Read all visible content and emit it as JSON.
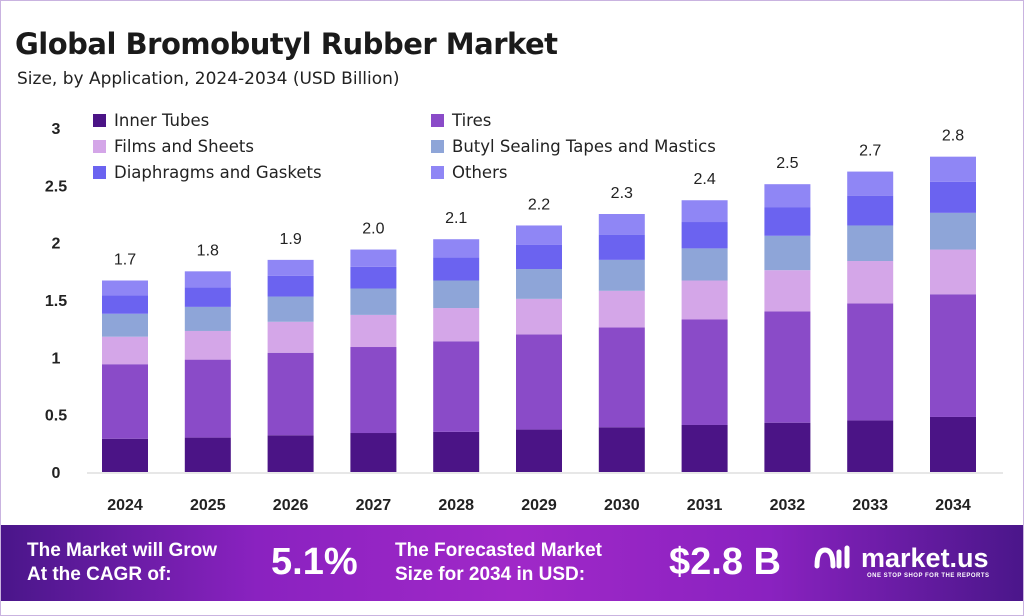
{
  "chart_data": {
    "type": "bar",
    "stacked": true,
    "title": "Global Bromobutyl Rubber Market",
    "subtitle": "Size, by Application, 2024-2034 (USD Billion)",
    "categories": [
      "2024",
      "2025",
      "2026",
      "2027",
      "2028",
      "2029",
      "2030",
      "2031",
      "2032",
      "2033",
      "2034"
    ],
    "totals_labels": [
      "1.7",
      "1.8",
      "1.9",
      "2.0",
      "2.1",
      "2.2",
      "2.3",
      "2.4",
      "2.5",
      "2.7",
      "2.8"
    ],
    "series": [
      {
        "name": "Inner Tubes",
        "color": "#4b1486",
        "values": [
          0.29,
          0.3,
          0.32,
          0.34,
          0.35,
          0.37,
          0.39,
          0.41,
          0.43,
          0.45,
          0.48
        ]
      },
      {
        "name": "Tires",
        "color": "#8a4bc8",
        "values": [
          0.65,
          0.68,
          0.72,
          0.75,
          0.79,
          0.83,
          0.87,
          0.92,
          0.97,
          1.02,
          1.07
        ]
      },
      {
        "name": "Films and Sheets",
        "color": "#d4a6e8",
        "values": [
          0.24,
          0.25,
          0.27,
          0.28,
          0.29,
          0.31,
          0.32,
          0.34,
          0.36,
          0.37,
          0.39
        ]
      },
      {
        "name": "Butyl Sealing Tapes and Mastics",
        "color": "#8ea5d8",
        "values": [
          0.2,
          0.21,
          0.22,
          0.23,
          0.24,
          0.26,
          0.27,
          0.28,
          0.3,
          0.31,
          0.32
        ]
      },
      {
        "name": "Diaphragms and Gaskets",
        "color": "#6b63f0",
        "values": [
          0.16,
          0.17,
          0.18,
          0.19,
          0.2,
          0.21,
          0.22,
          0.23,
          0.25,
          0.26,
          0.27
        ]
      },
      {
        "name": "Others",
        "color": "#8f86f5",
        "values": [
          0.13,
          0.14,
          0.14,
          0.15,
          0.16,
          0.17,
          0.18,
          0.19,
          0.2,
          0.21,
          0.22
        ]
      }
    ],
    "ylim": [
      0,
      3
    ],
    "yticks": [
      "0",
      "0.5",
      "1",
      "1.5",
      "2",
      "2.5",
      "3"
    ],
    "grid": false,
    "legend": "top-left"
  },
  "banner": {
    "cagr_label_1": "The Market will Grow",
    "cagr_label_2": "At the CAGR of:",
    "cagr_value": "5.1%",
    "forecast_label_1": "The Forecasted Market",
    "forecast_label_2": "Size for 2034 in USD:",
    "forecast_value": "$2.8 B",
    "logo_text": "market.us",
    "logo_tagline": "ONE STOP SHOP FOR THE REPORTS"
  }
}
